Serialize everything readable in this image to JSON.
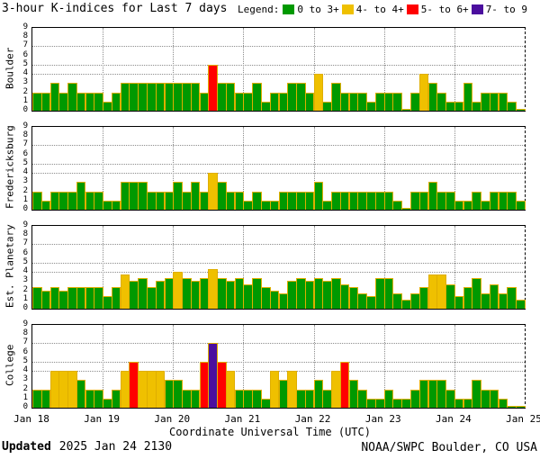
{
  "title": "3-hour K-indices for Last 7 days",
  "legend": {
    "label": "Legend:",
    "items": [
      {
        "label": "0 to 3+",
        "color": "#009900"
      },
      {
        "label": "4- to 4+",
        "color": "#efc000"
      },
      {
        "label": "5- to 6+",
        "color": "#ff0000"
      },
      {
        "label": "7- to 9",
        "color": "#4b0e9e"
      }
    ]
  },
  "chart_data": {
    "type": "bar",
    "title": "3-hour K-indices for Last 7 days",
    "xlabel": "Coordinate Universal Time (UTC)",
    "ylim": [
      0,
      9
    ],
    "y_ticks": [
      0,
      1,
      2,
      3,
      4,
      5,
      6,
      7,
      8,
      9
    ],
    "x_ticks": [
      "Jan 18",
      "Jan 19",
      "Jan 20",
      "Jan 21",
      "Jan 22",
      "Jan 23",
      "Jan 24",
      "Jan 25"
    ],
    "bars_per_day": 8,
    "bar_interval_hours": 3,
    "grid_levels": [
      4,
      5,
      7
    ],
    "color_thresholds": [
      {
        "min": 0,
        "color": "#009900"
      },
      {
        "min": 3.6,
        "color": "#efc000"
      },
      {
        "min": 4.5,
        "color": "#ff0000"
      },
      {
        "min": 6.5,
        "color": "#4b0e9e"
      }
    ],
    "panels": [
      {
        "station": "Boulder",
        "values": [
          2,
          2,
          3,
          2,
          3,
          2,
          2,
          2,
          1,
          2,
          3,
          3,
          3,
          3,
          3,
          3,
          3,
          3,
          3,
          2,
          5,
          3,
          3,
          2,
          2,
          3,
          1,
          2,
          2,
          3,
          3,
          2,
          4,
          1,
          3,
          2,
          2,
          2,
          1,
          2,
          2,
          2,
          0,
          2,
          4,
          3,
          2,
          1,
          1,
          3,
          1,
          2,
          2,
          2,
          1,
          0
        ]
      },
      {
        "station": "Fredericksburg",
        "values": [
          2,
          1,
          2,
          2,
          2,
          3,
          2,
          2,
          1,
          1,
          3,
          3,
          3,
          2,
          2,
          2,
          3,
          2,
          3,
          2,
          4,
          3,
          2,
          2,
          1,
          2,
          1,
          1,
          2,
          2,
          2,
          2,
          3,
          1,
          2,
          2,
          2,
          2,
          2,
          2,
          2,
          1,
          0,
          2,
          2,
          3,
          2,
          2,
          1,
          1,
          2,
          1,
          2,
          2,
          2,
          1
        ]
      },
      {
        "station": "Est. Planetary",
        "values": [
          2.33,
          2,
          2.33,
          2,
          2.33,
          2.33,
          2.33,
          2.33,
          1.33,
          2.33,
          3.67,
          3,
          3.33,
          2.33,
          3,
          3.33,
          4,
          3.33,
          3,
          3.33,
          4.33,
          3.33,
          3,
          3.33,
          2.67,
          3.33,
          2.33,
          2,
          1.67,
          3,
          3.33,
          3,
          3.33,
          3,
          3.33,
          2.67,
          2.33,
          1.67,
          1.33,
          3.33,
          3.33,
          1.67,
          1,
          1.67,
          2.33,
          3.67,
          3.67,
          2.67,
          1.33,
          2.33,
          3.33,
          1.67,
          2.67,
          1.67,
          2.33,
          1
        ]
      },
      {
        "station": "College",
        "values": [
          2,
          2,
          4,
          4,
          4,
          3,
          2,
          2,
          1,
          2,
          4,
          5,
          4,
          4,
          4,
          3,
          3,
          2,
          2,
          5,
          7,
          5,
          4,
          2,
          2,
          2,
          1,
          4,
          3,
          4,
          2,
          2,
          3,
          2,
          4,
          5,
          3,
          2,
          1,
          1,
          2,
          1,
          1,
          2,
          3,
          3,
          3,
          2,
          1,
          1,
          3,
          2,
          2,
          1,
          0,
          0
        ]
      }
    ]
  },
  "footer": {
    "updated_label": "Updated",
    "updated_value": "2025 Jan 24 2130",
    "source": "NOAA/SWPC Boulder, CO USA"
  }
}
